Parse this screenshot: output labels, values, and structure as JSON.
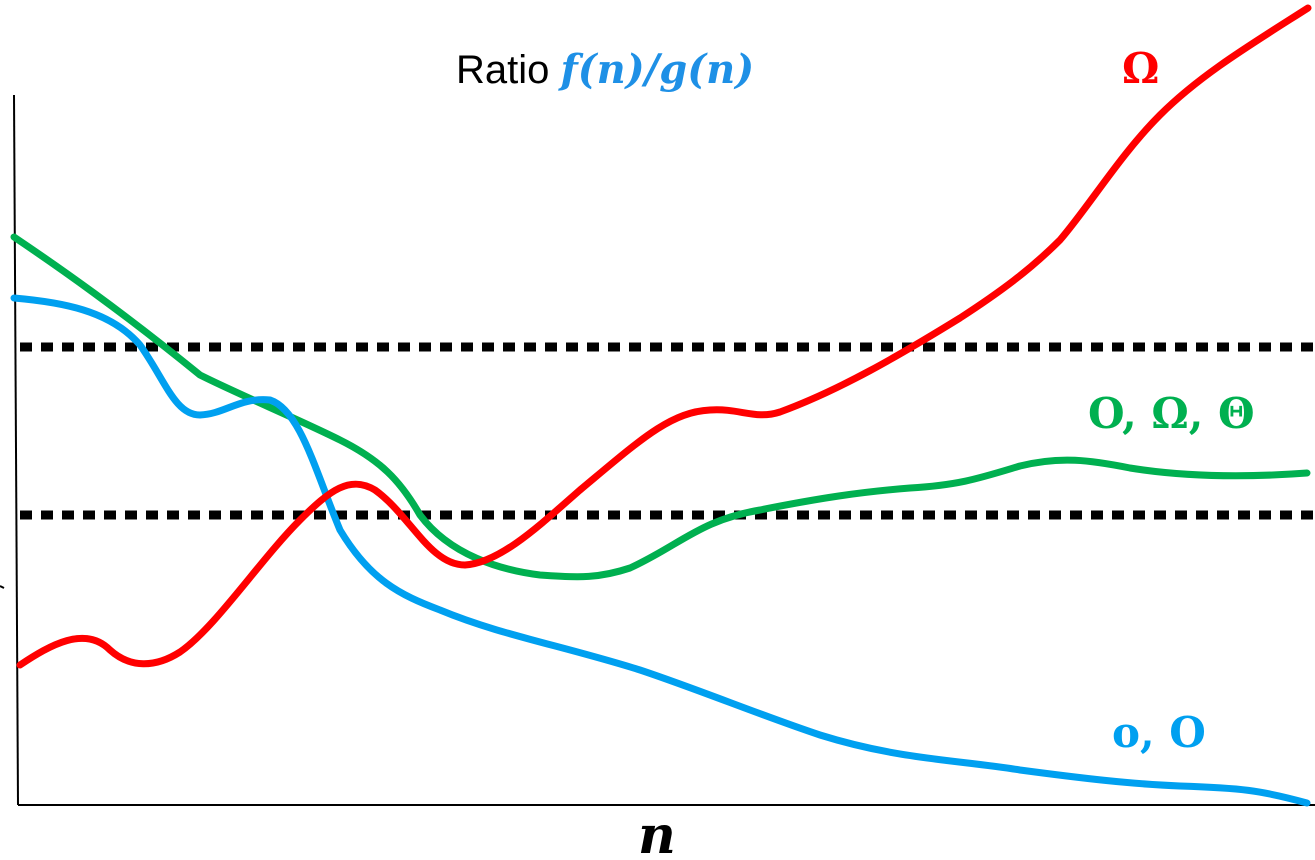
{
  "title": {
    "prefix": "Ratio ",
    "expression": "f(n)/g(n)",
    "expression_color": "#1e90e6"
  },
  "x_axis_label": "n",
  "colors": {
    "red": "#ff0000",
    "green": "#00b050",
    "blue": "#00a0f0",
    "thresholds": "#000000",
    "axis": "#000000"
  },
  "curve_labels": {
    "red": "Ω",
    "green": "O, Ω, Θ",
    "blue": "o, O"
  }
}
